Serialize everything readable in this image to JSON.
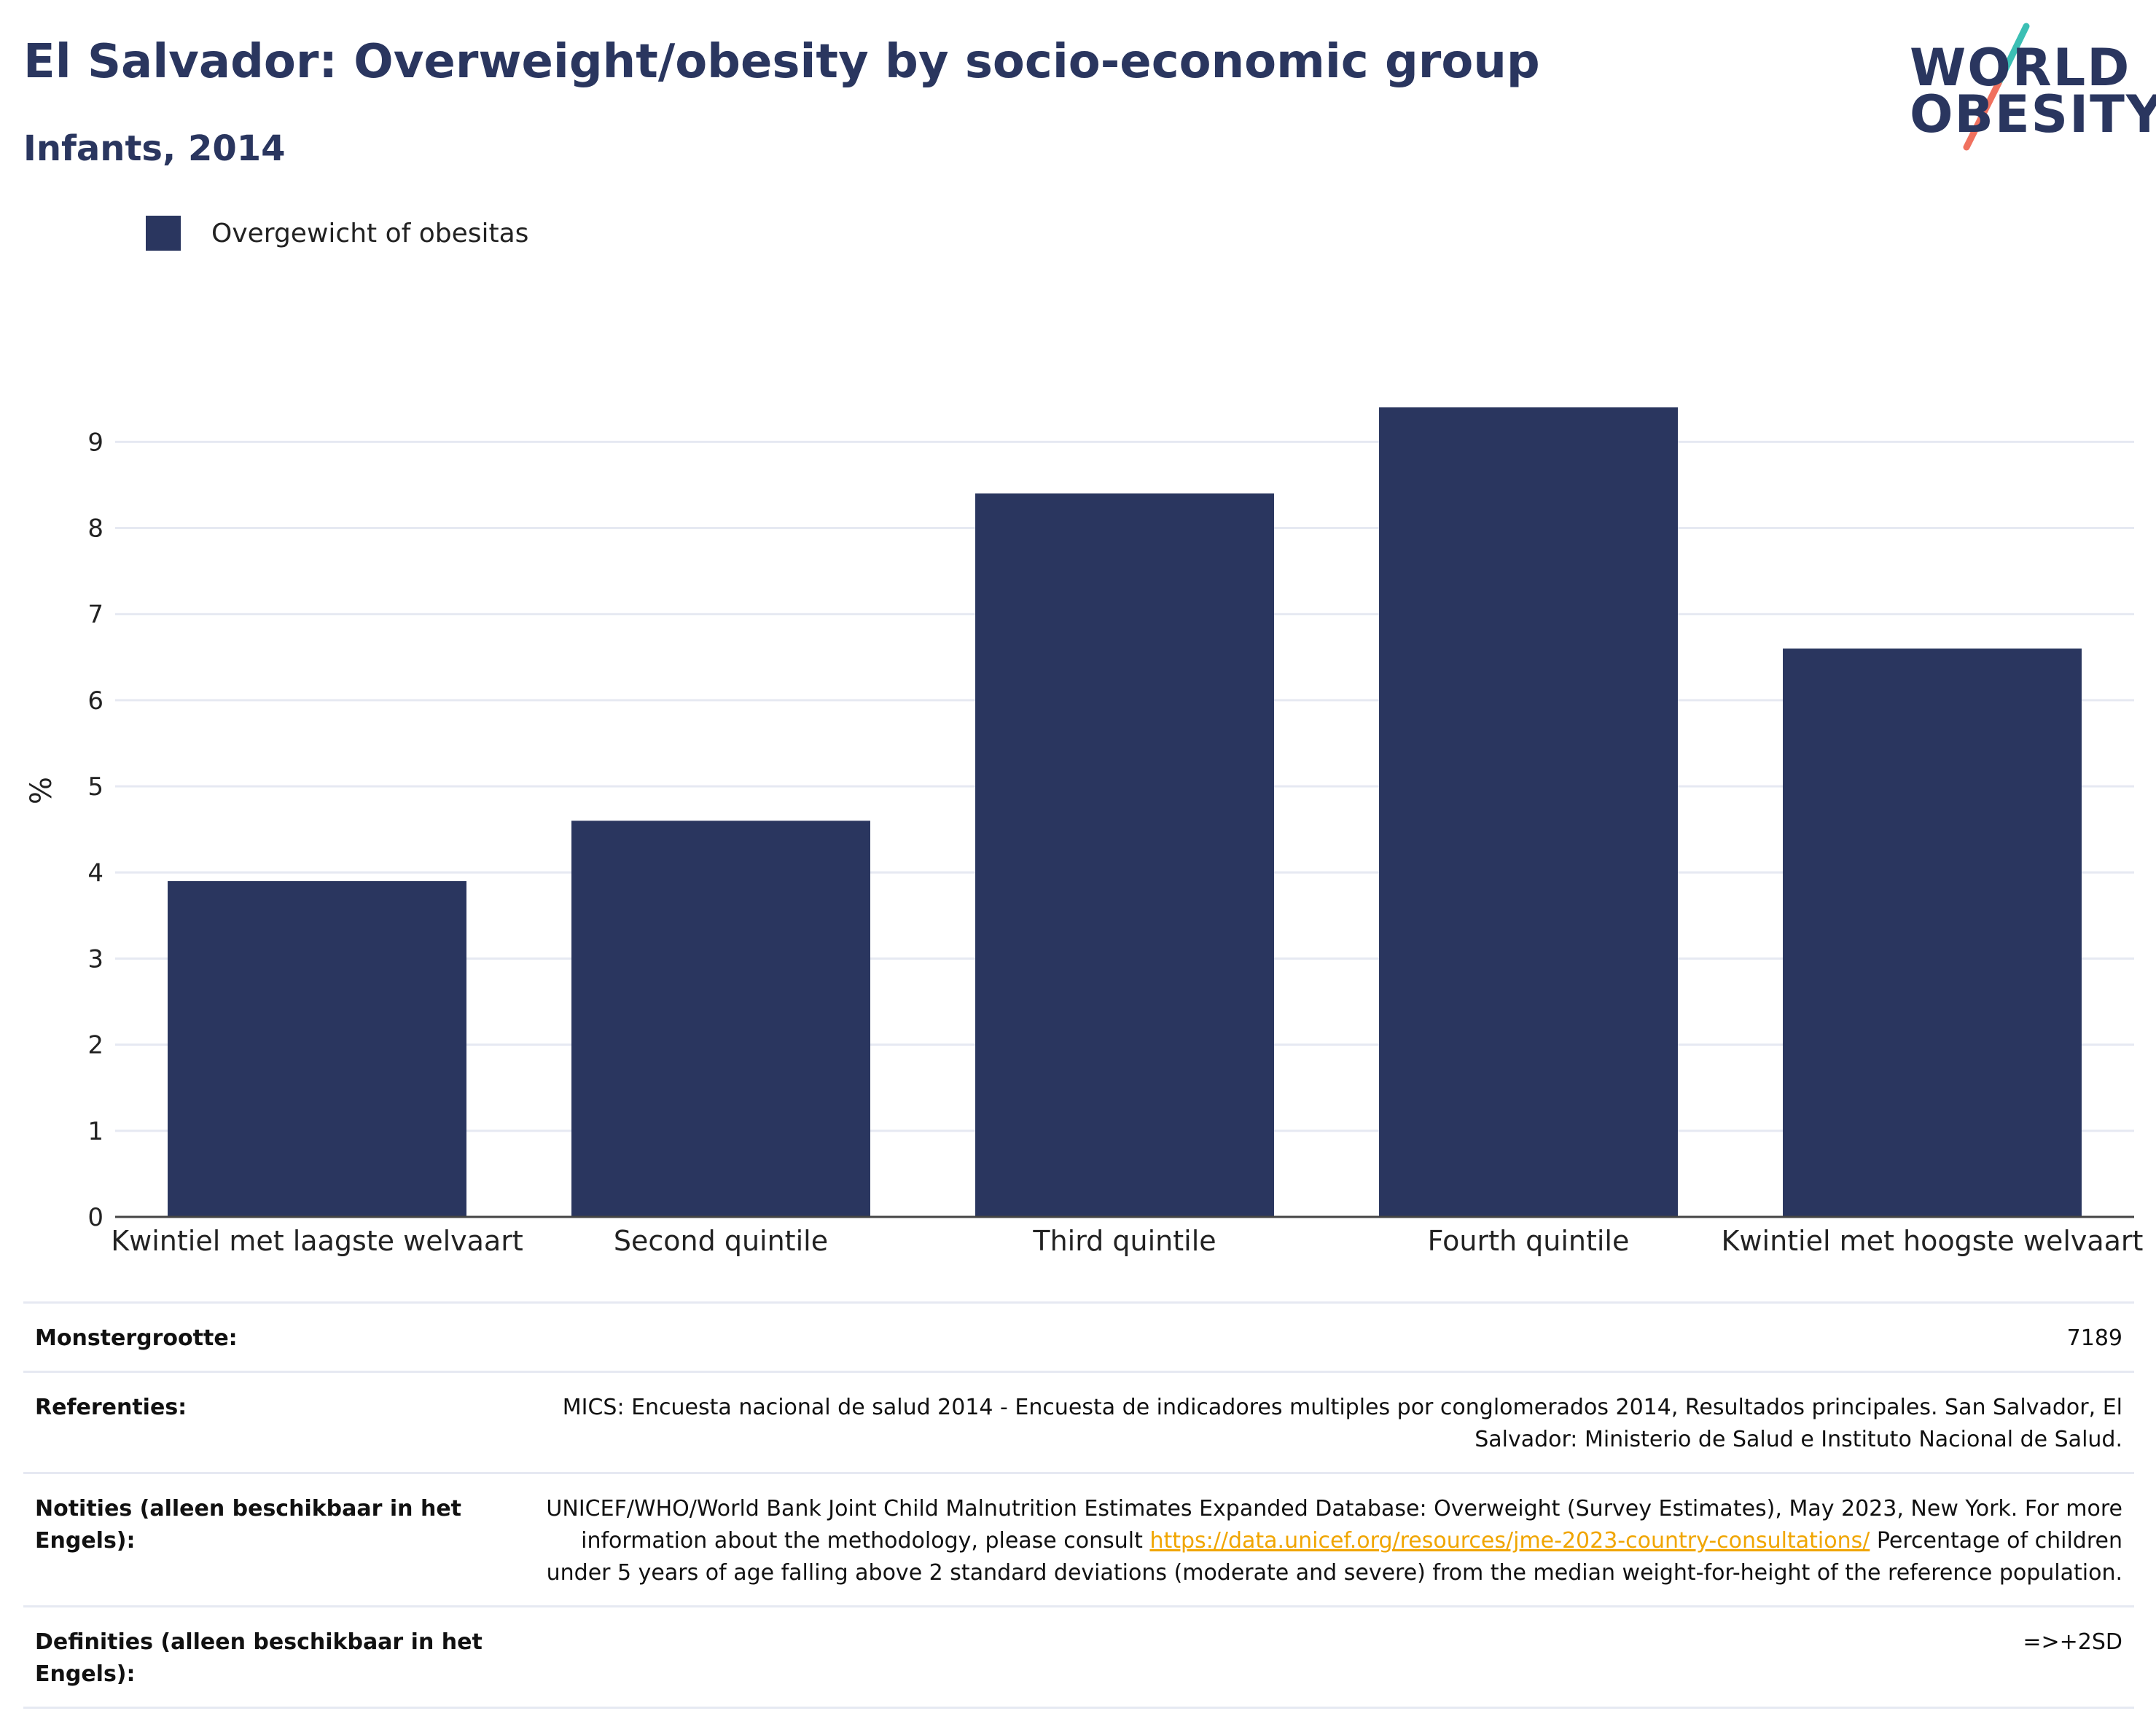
{
  "header": {
    "title": "El Salvador: Overweight/obesity by socio-economic group",
    "subtitle": "Infants, 2014"
  },
  "logo": {
    "line1": "WORLD",
    "line2": "OBESITY",
    "colors": {
      "text": "#2a365f",
      "slash_top": "#3bbfb4",
      "slash_bottom": "#f0715f"
    }
  },
  "legend": {
    "series_name": "Overgewicht of obesitas",
    "color": "#2a365f"
  },
  "chart_data": {
    "type": "bar",
    "title": "El Salvador: Overweight/obesity by socio-economic group",
    "subtitle": "Infants, 2014",
    "xlabel": "",
    "ylabel": "%",
    "categories": [
      "Kwintiel met laagste welvaart",
      "Second quintile",
      "Third quintile",
      "Fourth quintile",
      "Kwintiel met hoogste welvaart"
    ],
    "series": [
      {
        "name": "Overgewicht of obesitas",
        "values": [
          3.9,
          4.6,
          8.4,
          9.4,
          6.6
        ],
        "color": "#2a365f"
      }
    ],
    "yticks": [
      "0",
      "1",
      "2",
      "3",
      "4",
      "5",
      "6",
      "7",
      "8",
      "9"
    ],
    "ylim": [
      0,
      9.9
    ],
    "grid": true,
    "legend_position": "top-left"
  },
  "info": {
    "sample_size_label": "Monstergrootte:",
    "sample_size_value": "7189",
    "references_label": "Referenties:",
    "references_value": "MICS: Encuesta nacional de salud 2014 - Encuesta de indicadores multiples por conglomerados 2014, Resultados principales. San Salvador, El Salvador: Ministerio de Salud e Instituto Nacional de Salud.",
    "notes_label": "Notities (alleen beschikbaar in het Engels):",
    "notes_text_1": "UNICEF/WHO/World Bank Joint Child Malnutrition Estimates Expanded Database: Overweight (Survey Estimates), May 2023, New York. For more information about the methodology, please consult ",
    "notes_link": "https://data.unicef.org/resources/jme-2023-country-consultations/",
    "notes_text_2": " Percentage of children under 5 years of age falling above 2 standard deviations (moderate and severe) from the median weight-for-height of the reference population.",
    "definitions_label": "Definities (alleen beschikbaar in het Engels):",
    "definitions_value": "=>+2SD"
  }
}
